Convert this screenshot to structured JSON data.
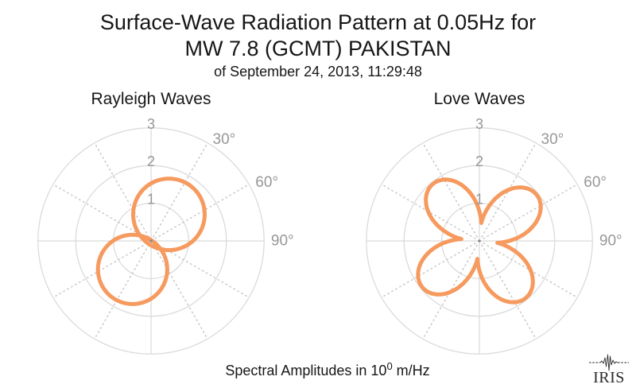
{
  "header": {
    "title_line1": "Surface-Wave Radiation Pattern at 0.05Hz for",
    "title_line2": "MW 7.8 (GCMT) PAKISTAN",
    "subtitle": "of September 24, 2013, 11:29:48"
  },
  "caption": {
    "text_before_exponent": "Spectral Amplitudes in 10",
    "exponent": "0",
    "text_after_exponent": " m/Hz"
  },
  "logo": {
    "name": "IRIS",
    "wordmark": "IRIS"
  },
  "colors": {
    "background": "#FFFFFF",
    "title_text": "#161616",
    "pattern_orange": "#F69A5F",
    "grid_line": "#DBDBDB",
    "grid_dotted": "#C9C9C9",
    "tick_label": "#979797",
    "center_dot": "#8C8C8C",
    "logo_ink": "#2A2A2A"
  },
  "chart_data": [
    {
      "type": "line",
      "subtype": "polar-radiation-pattern",
      "title": "Rayleigh Waves",
      "r_ticks": [
        "1",
        "2",
        "3"
      ],
      "r_max_units": 3,
      "theta_tick_labels": [
        {
          "label": "30°",
          "azimuth_deg": 30
        },
        {
          "label": "60°",
          "azimuth_deg": 60
        },
        {
          "label": "90°",
          "azimuth_deg": 90
        }
      ],
      "grid": {
        "circles": [
          1,
          2,
          3
        ],
        "ray_spacing_deg": 30,
        "solid_axes_deg": [
          0,
          90,
          180,
          270
        ]
      },
      "series_color": "#F69A5F",
      "pattern": {
        "kind": "two-circles",
        "description": "Two nearly circular lobes tangent near the origin, pointing at ~34° and ~213° azimuth",
        "lobes": [
          {
            "center_radius_units": 0.85,
            "center_azimuth_deg": 34,
            "radius_units": 0.95
          },
          {
            "center_radius_units": 0.9,
            "center_azimuth_deg": 213,
            "radius_units": 0.92
          }
        ],
        "r_peak_units": 1.8
      },
      "sample_azimuths_deg": [
        0,
        15,
        30,
        45,
        60,
        75,
        90,
        105,
        120,
        135,
        150,
        165,
        180,
        195,
        210,
        225,
        240,
        255,
        270,
        285,
        300,
        315,
        330,
        345
      ],
      "sample_amplitudes_units": [
        1.53,
        1.71,
        1.8,
        1.77,
        1.64,
        1.41,
        1.11,
        0.78,
        0.49,
        0.45,
        0.86,
        1.23,
        1.53,
        1.73,
        1.82,
        1.78,
        1.63,
        1.36,
        1.02,
        0.62,
        0.37,
        0.62,
        0.94,
        1.26
      ]
    },
    {
      "type": "line",
      "subtype": "polar-radiation-pattern",
      "title": "Love Waves",
      "r_ticks": [
        "1",
        "2",
        "3"
      ],
      "r_max_units": 3,
      "theta_tick_labels": [
        {
          "label": "30°",
          "azimuth_deg": 30
        },
        {
          "label": "60°",
          "azimuth_deg": 60
        },
        {
          "label": "90°",
          "azimuth_deg": 90
        }
      ],
      "grid": {
        "circles": [
          1,
          2,
          3
        ],
        "ray_spacing_deg": 30,
        "solid_axes_deg": [
          0,
          90,
          180,
          270
        ]
      },
      "series_color": "#F69A5F",
      "pattern": {
        "kind": "four-petal",
        "description": "Four-lobed clover with sharp inward cusps; petals at ~51°, 141°, 231°, 321°",
        "formula": "r(theta) = 1.47*|sin(2*(theta - 6deg))| + 0.48",
        "amplitude_units": 1.47,
        "baseline_units": 0.48,
        "rotation_deg": 6,
        "petal_azimuths_deg": [
          51,
          141,
          231,
          321
        ],
        "r_peak_units": 1.95,
        "r_min_units": 0.48
      },
      "sample_azimuths_deg": [
        0,
        15,
        30,
        45,
        60,
        75,
        90,
        105,
        120,
        135,
        150,
        165,
        180,
        195,
        210,
        225,
        240,
        255,
        270,
        285,
        300,
        315,
        330,
        345
      ],
      "sample_amplitudes_units": [
        0.79,
        0.93,
        1.57,
        1.92,
        1.88,
        1.46,
        0.79,
        0.93,
        1.57,
        1.92,
        1.88,
        1.46,
        0.79,
        0.93,
        1.57,
        1.92,
        1.88,
        1.46,
        0.79,
        0.93,
        1.57,
        1.92,
        1.88,
        1.46
      ]
    }
  ]
}
